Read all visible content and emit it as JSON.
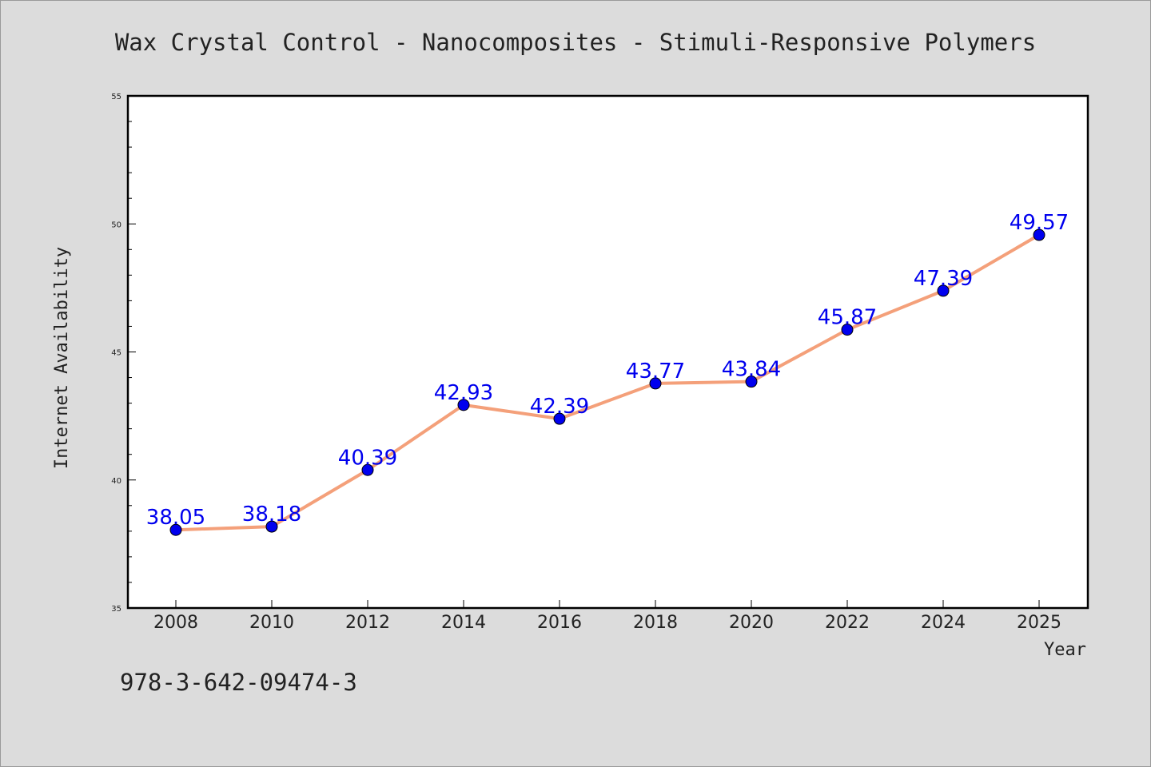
{
  "chart_data": {
    "type": "line",
    "title": "Wax Crystal Control - Nanocomposites - Stimuli-Responsive Polymers",
    "xlabel": "Year",
    "ylabel": "Internet Availability",
    "categories": [
      "2008",
      "2010",
      "2012",
      "2014",
      "2016",
      "2018",
      "2020",
      "2022",
      "2024",
      "2025"
    ],
    "series": [
      {
        "values": [
          38.05,
          38.18,
          40.39,
          42.93,
          42.39,
          43.77,
          43.84,
          45.87,
          47.39,
          49.57
        ],
        "data_labels": [
          "38.05",
          "38.18",
          "40.39",
          "42.93",
          "42.39",
          "43.77",
          "43.84",
          "45.87",
          "47.39",
          "49.57"
        ],
        "line_color": "#f4a07a",
        "marker_color": "#0000ee",
        "label_color": "#0000ee"
      }
    ],
    "ylim": [
      35,
      55
    ],
    "y_ticks": [
      "35",
      "40",
      "45",
      "50",
      "55"
    ],
    "grid": false,
    "legend": "none"
  },
  "footer_text": "978-3-642-09474-3",
  "colors": {
    "background": "#dcdcdc",
    "plot_background": "#ffffff",
    "axis": "#000000",
    "text": "#222222"
  }
}
